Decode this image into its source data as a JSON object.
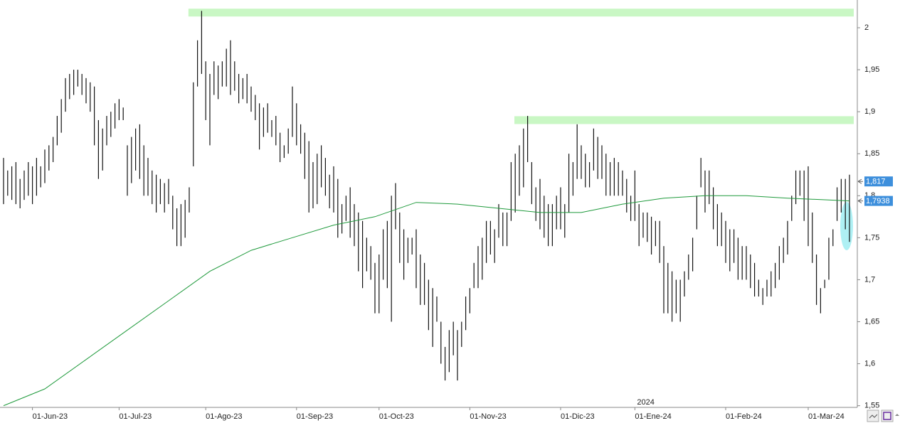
{
  "chart_data": {
    "type": "ohlc",
    "color": "#111111",
    "grid": true,
    "xlim": [
      -0.86,
      206.9
    ],
    "ylim": [
      1.548,
      2.033
    ],
    "yticks": [
      {
        "value": 1.55,
        "label": "1,55"
      },
      {
        "value": 1.6,
        "label": "1,6"
      },
      {
        "value": 1.65,
        "label": "1,65"
      },
      {
        "value": 1.7,
        "label": "1,7"
      },
      {
        "value": 1.75,
        "label": "1,75"
      },
      {
        "value": 1.8,
        "label": "1,8"
      },
      {
        "value": 1.85,
        "label": "1,85"
      },
      {
        "value": 1.9,
        "label": "1,9"
      },
      {
        "value": 1.95,
        "label": "1,95"
      },
      {
        "value": 2,
        "label": "2"
      }
    ],
    "xticks": [
      {
        "value": 7,
        "label": "01-Jun-23"
      },
      {
        "value": 28,
        "label": "01-Jul-23"
      },
      {
        "value": 49,
        "label": "01-Ago-23"
      },
      {
        "value": 71,
        "label": "01-Sep-23"
      },
      {
        "value": 91,
        "label": "01-Oct-23"
      },
      {
        "value": 113,
        "label": "01-Nov-23"
      },
      {
        "value": 135,
        "label": "01-Dic-23"
      },
      {
        "value": 153,
        "label": "01-Ene-24"
      },
      {
        "value": 175,
        "label": "01-Feb-24"
      },
      {
        "value": 195,
        "label": "01-Mar-24"
      }
    ],
    "year_marker": {
      "value": 153,
      "label": "2024"
    },
    "x": [
      0,
      1,
      2,
      3,
      4,
      5,
      6,
      7,
      8,
      9,
      10,
      11,
      12,
      13,
      14,
      15,
      16,
      17,
      18,
      19,
      20,
      21,
      22,
      23,
      24,
      25,
      26,
      27,
      28,
      29,
      30,
      31,
      32,
      33,
      34,
      35,
      36,
      37,
      38,
      39,
      40,
      41,
      42,
      43,
      44,
      45,
      46,
      47,
      48,
      49,
      50,
      51,
      52,
      53,
      54,
      55,
      56,
      57,
      58,
      59,
      60,
      61,
      62,
      63,
      64,
      65,
      66,
      67,
      68,
      69,
      70,
      71,
      72,
      73,
      74,
      75,
      76,
      77,
      78,
      79,
      80,
      81,
      82,
      83,
      84,
      85,
      86,
      87,
      88,
      89,
      90,
      91,
      92,
      93,
      94,
      95,
      96,
      97,
      98,
      99,
      100,
      101,
      102,
      103,
      104,
      105,
      106,
      107,
      108,
      109,
      110,
      111,
      112,
      113,
      114,
      115,
      116,
      117,
      118,
      119,
      120,
      121,
      122,
      123,
      124,
      125,
      126,
      127,
      128,
      129,
      130,
      131,
      132,
      133,
      134,
      135,
      136,
      137,
      138,
      139,
      140,
      141,
      142,
      143,
      144,
      145,
      146,
      147,
      148,
      149,
      150,
      151,
      152,
      153,
      154,
      155,
      156,
      157,
      158,
      159,
      160,
      161,
      162,
      163,
      164,
      165,
      166,
      167,
      168,
      169,
      170,
      171,
      172,
      173,
      174,
      175,
      176,
      177,
      178,
      179,
      180,
      181,
      182,
      183,
      184,
      185,
      186,
      187,
      188,
      189,
      190,
      191,
      192,
      193,
      194,
      195,
      196,
      197,
      198,
      199,
      200,
      201,
      202,
      203,
      204,
      205
    ],
    "high": [
      1.845,
      1.83,
      1.835,
      1.84,
      1.82,
      1.83,
      1.84,
      1.835,
      1.845,
      1.835,
      1.855,
      1.86,
      1.87,
      1.895,
      1.915,
      1.94,
      1.945,
      1.95,
      1.95,
      1.945,
      1.94,
      1.935,
      1.93,
      1.89,
      1.88,
      1.895,
      1.9,
      1.91,
      1.915,
      1.905,
      1.86,
      1.87,
      1.88,
      1.885,
      1.86,
      1.845,
      1.83,
      1.825,
      1.82,
      1.815,
      1.82,
      1.8,
      1.785,
      1.79,
      1.795,
      1.81,
      1.935,
      1.985,
      2.02,
      1.96,
      1.945,
      1.96,
      1.955,
      1.96,
      1.975,
      1.985,
      1.96,
      1.945,
      1.94,
      1.945,
      1.93,
      1.92,
      1.91,
      1.905,
      1.91,
      1.89,
      1.895,
      1.875,
      1.86,
      1.88,
      1.93,
      1.91,
      1.885,
      1.875,
      1.865,
      1.84,
      1.85,
      1.86,
      1.845,
      1.825,
      1.835,
      1.82,
      1.79,
      1.8,
      1.81,
      1.79,
      1.78,
      1.77,
      1.75,
      1.74,
      1.72,
      1.73,
      1.76,
      1.77,
      1.8,
      1.815,
      1.78,
      1.76,
      1.75,
      1.75,
      1.76,
      1.73,
      1.72,
      1.7,
      1.69,
      1.68,
      1.65,
      1.62,
      1.64,
      1.65,
      1.64,
      1.65,
      1.68,
      1.69,
      1.72,
      1.74,
      1.75,
      1.77,
      1.77,
      1.76,
      1.79,
      1.78,
      1.78,
      1.84,
      1.85,
      1.86,
      1.88,
      1.895,
      1.84,
      1.81,
      1.82,
      1.8,
      1.79,
      1.79,
      1.8,
      1.81,
      1.79,
      1.85,
      1.84,
      1.885,
      1.86,
      1.85,
      1.84,
      1.88,
      1.87,
      1.86,
      1.85,
      1.84,
      1.845,
      1.84,
      1.83,
      1.82,
      1.8,
      1.83,
      1.79,
      1.78,
      1.78,
      1.775,
      1.77,
      1.77,
      1.74,
      1.72,
      1.71,
      1.7,
      1.7,
      1.71,
      1.73,
      1.75,
      1.8,
      1.845,
      1.83,
      1.83,
      1.81,
      1.79,
      1.78,
      1.77,
      1.76,
      1.76,
      1.75,
      1.74,
      1.74,
      1.73,
      1.72,
      1.7,
      1.69,
      1.7,
      1.71,
      1.72,
      1.74,
      1.75,
      1.77,
      1.8,
      1.83,
      1.83,
      1.83,
      1.835,
      1.78,
      1.73,
      1.69,
      1.7,
      1.75,
      1.76,
      1.81,
      1.82,
      1.82,
      1.825
    ],
    "low": [
      1.79,
      1.8,
      1.795,
      1.79,
      1.785,
      1.795,
      1.8,
      1.79,
      1.8,
      1.81,
      1.815,
      1.83,
      1.84,
      1.86,
      1.875,
      1.9,
      1.915,
      1.92,
      1.93,
      1.92,
      1.91,
      1.9,
      1.86,
      1.82,
      1.83,
      1.86,
      1.87,
      1.88,
      1.89,
      1.89,
      1.8,
      1.815,
      1.83,
      1.82,
      1.8,
      1.8,
      1.79,
      1.78,
      1.79,
      1.78,
      1.79,
      1.76,
      1.74,
      1.74,
      1.75,
      1.78,
      1.835,
      1.93,
      1.945,
      1.89,
      1.86,
      1.92,
      1.915,
      1.93,
      1.93,
      1.92,
      1.925,
      1.91,
      1.915,
      1.91,
      1.9,
      1.89,
      1.855,
      1.87,
      1.875,
      1.87,
      1.86,
      1.84,
      1.845,
      1.85,
      1.87,
      1.86,
      1.85,
      1.82,
      1.78,
      1.785,
      1.79,
      1.81,
      1.8,
      1.785,
      1.78,
      1.75,
      1.755,
      1.77,
      1.75,
      1.74,
      1.71,
      1.69,
      1.71,
      1.7,
      1.66,
      1.66,
      1.7,
      1.69,
      1.65,
      1.76,
      1.72,
      1.7,
      1.72,
      1.73,
      1.69,
      1.67,
      1.67,
      1.64,
      1.62,
      1.65,
      1.6,
      1.58,
      1.59,
      1.61,
      1.58,
      1.62,
      1.64,
      1.66,
      1.69,
      1.69,
      1.7,
      1.72,
      1.73,
      1.72,
      1.75,
      1.74,
      1.74,
      1.77,
      1.78,
      1.8,
      1.81,
      1.84,
      1.79,
      1.77,
      1.76,
      1.75,
      1.74,
      1.74,
      1.76,
      1.76,
      1.75,
      1.78,
      1.8,
      1.82,
      1.82,
      1.81,
      1.81,
      1.83,
      1.82,
      1.82,
      1.8,
      1.8,
      1.8,
      1.8,
      1.8,
      1.78,
      1.77,
      1.77,
      1.74,
      1.75,
      1.745,
      1.73,
      1.74,
      1.72,
      1.66,
      1.66,
      1.65,
      1.66,
      1.65,
      1.68,
      1.7,
      1.71,
      1.76,
      1.81,
      1.78,
      1.79,
      1.76,
      1.74,
      1.74,
      1.72,
      1.71,
      1.72,
      1.7,
      1.7,
      1.7,
      1.69,
      1.68,
      1.68,
      1.67,
      1.68,
      1.68,
      1.69,
      1.7,
      1.72,
      1.73,
      1.77,
      1.79,
      1.8,
      1.77,
      1.74,
      1.72,
      1.67,
      1.66,
      1.69,
      1.7,
      1.74,
      1.77,
      1.78,
      1.76,
      1.745
    ],
    "average": {
      "color": "#1f9a3c",
      "x": [
        0,
        10,
        20,
        30,
        40,
        50,
        60,
        70,
        80,
        90,
        100,
        110,
        120,
        130,
        140,
        150,
        160,
        170,
        180,
        190,
        200,
        205
      ],
      "values": [
        1.55,
        1.57,
        1.605,
        1.64,
        1.675,
        1.71,
        1.735,
        1.75,
        1.765,
        1.775,
        1.792,
        1.79,
        1.785,
        1.78,
        1.78,
        1.79,
        1.797,
        1.8,
        1.8,
        1.797,
        1.795,
        1.7938
      ]
    },
    "bands": [
      {
        "from": 44.8,
        "level": 2.018,
        "color": "#c9f7c4"
      },
      {
        "from": 123.8,
        "level": 1.89,
        "color": "#c9f7c4"
      }
    ],
    "price_labels": [
      {
        "value": 1.817,
        "label": "1,817",
        "color": "#3d8fdc"
      },
      {
        "value": 1.7938,
        "label": "1,7938",
        "color": "#3d8fdc"
      }
    ]
  }
}
